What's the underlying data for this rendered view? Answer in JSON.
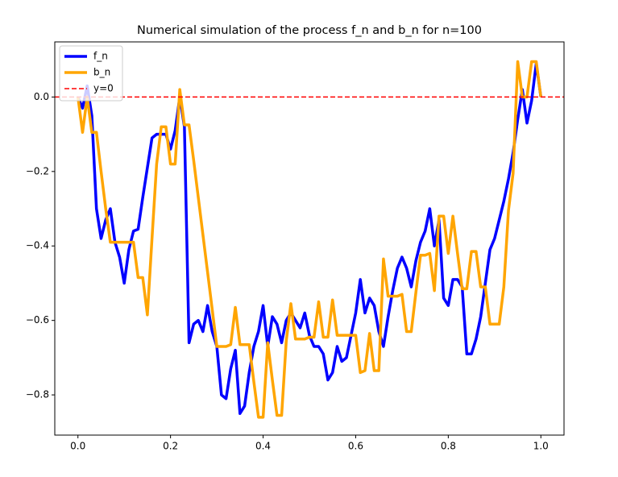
{
  "chart_data": {
    "type": "line",
    "title": "Numerical simulation of the process f_n and b_n for n=100",
    "x": [
      0,
      0.01,
      0.02,
      0.03,
      0.04,
      0.05,
      0.06,
      0.07,
      0.08,
      0.09,
      0.1,
      0.11,
      0.12,
      0.13,
      0.14,
      0.15,
      0.16,
      0.17,
      0.18,
      0.19,
      0.2,
      0.21,
      0.22,
      0.23,
      0.24,
      0.25,
      0.26,
      0.27,
      0.28,
      0.29,
      0.3,
      0.31,
      0.32,
      0.33,
      0.34,
      0.35,
      0.36,
      0.37,
      0.38,
      0.39,
      0.4,
      0.41,
      0.42,
      0.43,
      0.44,
      0.45,
      0.46,
      0.47,
      0.48,
      0.49,
      0.5,
      0.51,
      0.52,
      0.53,
      0.54,
      0.55,
      0.56,
      0.57,
      0.58,
      0.59,
      0.6,
      0.61,
      0.62,
      0.63,
      0.64,
      0.65,
      0.66,
      0.67,
      0.68,
      0.69,
      0.7,
      0.71,
      0.72,
      0.73,
      0.74,
      0.75,
      0.76,
      0.77,
      0.78,
      0.79,
      0.8,
      0.81,
      0.82,
      0.83,
      0.84,
      0.85,
      0.86,
      0.87,
      0.88,
      0.89,
      0.9,
      0.91,
      0.92,
      0.93,
      0.94,
      0.95,
      0.96,
      0.97,
      0.98,
      0.99,
      1.0
    ],
    "series": [
      {
        "name": "f_n",
        "color": "#0000ff",
        "values": [
          0,
          -0.03,
          0.03,
          -0.05,
          -0.3,
          -0.38,
          -0.33,
          -0.3,
          -0.39,
          -0.43,
          -0.5,
          -0.41,
          -0.36,
          -0.355,
          -0.27,
          -0.19,
          -0.11,
          -0.1,
          -0.1,
          -0.1,
          -0.14,
          -0.09,
          0.0,
          -0.08,
          -0.66,
          -0.61,
          -0.6,
          -0.63,
          -0.56,
          -0.63,
          -0.67,
          -0.8,
          -0.81,
          -0.73,
          -0.68,
          -0.85,
          -0.83,
          -0.74,
          -0.67,
          -0.63,
          -0.56,
          -0.67,
          -0.59,
          -0.61,
          -0.66,
          -0.6,
          -0.58,
          -0.6,
          -0.62,
          -0.58,
          -0.64,
          -0.67,
          -0.67,
          -0.69,
          -0.76,
          -0.74,
          -0.67,
          -0.71,
          -0.7,
          -0.64,
          -0.58,
          -0.49,
          -0.58,
          -0.54,
          -0.56,
          -0.63,
          -0.67,
          -0.59,
          -0.52,
          -0.46,
          -0.43,
          -0.46,
          -0.51,
          -0.44,
          -0.39,
          -0.36,
          -0.3,
          -0.4,
          -0.33,
          -0.54,
          -0.56,
          -0.49,
          -0.49,
          -0.51,
          -0.69,
          -0.69,
          -0.65,
          -0.59,
          -0.5,
          -0.41,
          -0.38,
          -0.33,
          -0.28,
          -0.22,
          -0.15,
          -0.06,
          0.02,
          -0.07,
          -0.01,
          0.09,
          0.0
        ]
      },
      {
        "name": "b_n",
        "color": "#ffa500",
        "values": [
          0,
          -0.095,
          0.0,
          -0.095,
          -0.095,
          -0.2,
          -0.3,
          -0.39,
          -0.39,
          -0.39,
          -0.39,
          -0.39,
          -0.39,
          -0.485,
          -0.485,
          -0.585,
          -0.38,
          -0.18,
          -0.08,
          -0.08,
          -0.18,
          -0.18,
          0.02,
          -0.075,
          -0.075,
          -0.17,
          -0.27,
          -0.37,
          -0.47,
          -0.57,
          -0.67,
          -0.67,
          -0.67,
          -0.665,
          -0.565,
          -0.665,
          -0.665,
          -0.665,
          -0.765,
          -0.86,
          -0.86,
          -0.66,
          -0.76,
          -0.855,
          -0.855,
          -0.655,
          -0.555,
          -0.65,
          -0.65,
          -0.65,
          -0.645,
          -0.645,
          -0.55,
          -0.645,
          -0.645,
          -0.545,
          -0.64,
          -0.64,
          -0.64,
          -0.64,
          -0.64,
          -0.74,
          -0.735,
          -0.635,
          -0.735,
          -0.735,
          -0.435,
          -0.535,
          -0.535,
          -0.535,
          -0.53,
          -0.63,
          -0.63,
          -0.525,
          -0.425,
          -0.425,
          -0.42,
          -0.52,
          -0.32,
          -0.32,
          -0.42,
          -0.32,
          -0.42,
          -0.515,
          -0.515,
          -0.415,
          -0.415,
          -0.51,
          -0.51,
          -0.61,
          -0.61,
          -0.61,
          -0.51,
          -0.305,
          -0.205,
          0.095,
          0.0,
          0.0,
          0.095,
          0.095,
          0.0
        ]
      }
    ],
    "hlines": [
      {
        "name": "y=0",
        "y": 0,
        "color": "#ff0000",
        "linestyle": "dashed"
      }
    ],
    "xlim": [
      -0.05,
      1.05
    ],
    "ylim": [
      -0.908,
      0.148
    ],
    "xticks": [
      {
        "value": 0,
        "label": "0.0"
      },
      {
        "value": 0.2,
        "label": "0.2"
      },
      {
        "value": 0.4,
        "label": "0.4"
      },
      {
        "value": 0.6,
        "label": "0.6"
      },
      {
        "value": 0.8,
        "label": "0.8"
      },
      {
        "value": 1,
        "label": "1.0"
      }
    ],
    "yticks": [
      {
        "value": 0,
        "label": "0.0"
      },
      {
        "value": -0.2,
        "label": "−0.2"
      },
      {
        "value": -0.4,
        "label": "−0.4"
      },
      {
        "value": -0.6,
        "label": "−0.6"
      },
      {
        "value": -0.8,
        "label": "−0.8"
      }
    ],
    "legend": "upper left"
  }
}
